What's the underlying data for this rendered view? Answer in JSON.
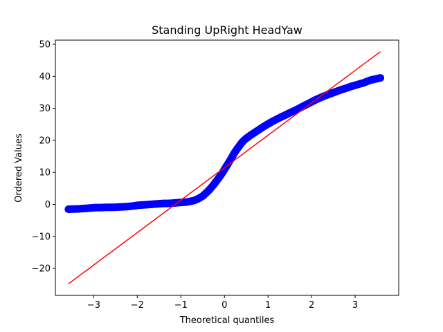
{
  "chart_data": {
    "type": "scatter",
    "title": "Standing UpRight HeadYaw",
    "xlabel": "Theoretical quantiles",
    "ylabel": "Ordered Values",
    "xlim": [
      -3.88,
      4.0
    ],
    "ylim": [
      -28.4,
      51.3
    ],
    "xticks": [
      -3,
      -2,
      -1,
      0,
      1,
      2,
      3
    ],
    "yticks": [
      -20,
      -10,
      0,
      10,
      20,
      30,
      40,
      50
    ],
    "xtick_labels": [
      "−3",
      "−2",
      "−1",
      "0",
      "1",
      "2",
      "3"
    ],
    "ytick_labels": [
      "−20",
      "−10",
      "0",
      "10",
      "20",
      "30",
      "40",
      "50"
    ],
    "grid": false,
    "colors": {
      "points": "#0000ff",
      "fit_line": "#ff0000",
      "axes": "#000000"
    },
    "series": [
      {
        "kind": "points",
        "x": [
          -3.58,
          -3.35,
          -3.25,
          -3.15,
          -3.05,
          -2.95,
          -2.85,
          -2.7,
          -2.55,
          -2.4,
          -2.25,
          -2.1,
          -2.0,
          -1.9,
          -1.8,
          -1.7,
          -1.6,
          -1.5,
          -1.4,
          -1.3,
          -1.2,
          -1.1,
          -1.0,
          -0.9,
          -0.8,
          -0.7,
          -0.6,
          -0.5,
          -0.45,
          -0.4,
          -0.35,
          -0.3,
          -0.25,
          -0.2,
          -0.15,
          -0.1,
          -0.05,
          0.0,
          0.05,
          0.1,
          0.15,
          0.2,
          0.25,
          0.3,
          0.35,
          0.4,
          0.45,
          0.5,
          0.55,
          0.6,
          0.7,
          0.8,
          0.9,
          1.0,
          1.1,
          1.2,
          1.3,
          1.4,
          1.5,
          1.6,
          1.7,
          1.8,
          1.9,
          2.0,
          2.1,
          2.2,
          2.3,
          2.4,
          2.5,
          2.6,
          2.7,
          2.8,
          2.9,
          3.0,
          3.1,
          3.2,
          3.35,
          3.58
        ],
        "y": [
          -1.5,
          -1.4,
          -1.3,
          -1.2,
          -1.1,
          -1.0,
          -1.0,
          -0.9,
          -0.9,
          -0.8,
          -0.7,
          -0.5,
          -0.3,
          -0.2,
          -0.1,
          0.0,
          0.1,
          0.2,
          0.3,
          0.3,
          0.4,
          0.5,
          0.6,
          0.7,
          0.9,
          1.2,
          1.8,
          2.6,
          3.2,
          3.8,
          4.5,
          5.3,
          6.1,
          7.0,
          7.9,
          8.8,
          9.8,
          10.9,
          12.0,
          13.1,
          14.2,
          15.4,
          16.5,
          17.5,
          18.4,
          19.3,
          20.0,
          20.6,
          21.1,
          21.6,
          22.5,
          23.4,
          24.3,
          25.1,
          25.9,
          26.6,
          27.3,
          27.9,
          28.6,
          29.2,
          29.9,
          30.6,
          31.3,
          32.0,
          32.7,
          33.3,
          33.9,
          34.4,
          34.9,
          35.4,
          35.9,
          36.3,
          36.8,
          37.2,
          37.6,
          38.0,
          38.8,
          39.5
        ]
      },
      {
        "kind": "fit_line",
        "x": [
          -3.58,
          3.58
        ],
        "y": [
          -24.8,
          47.7
        ]
      }
    ]
  }
}
